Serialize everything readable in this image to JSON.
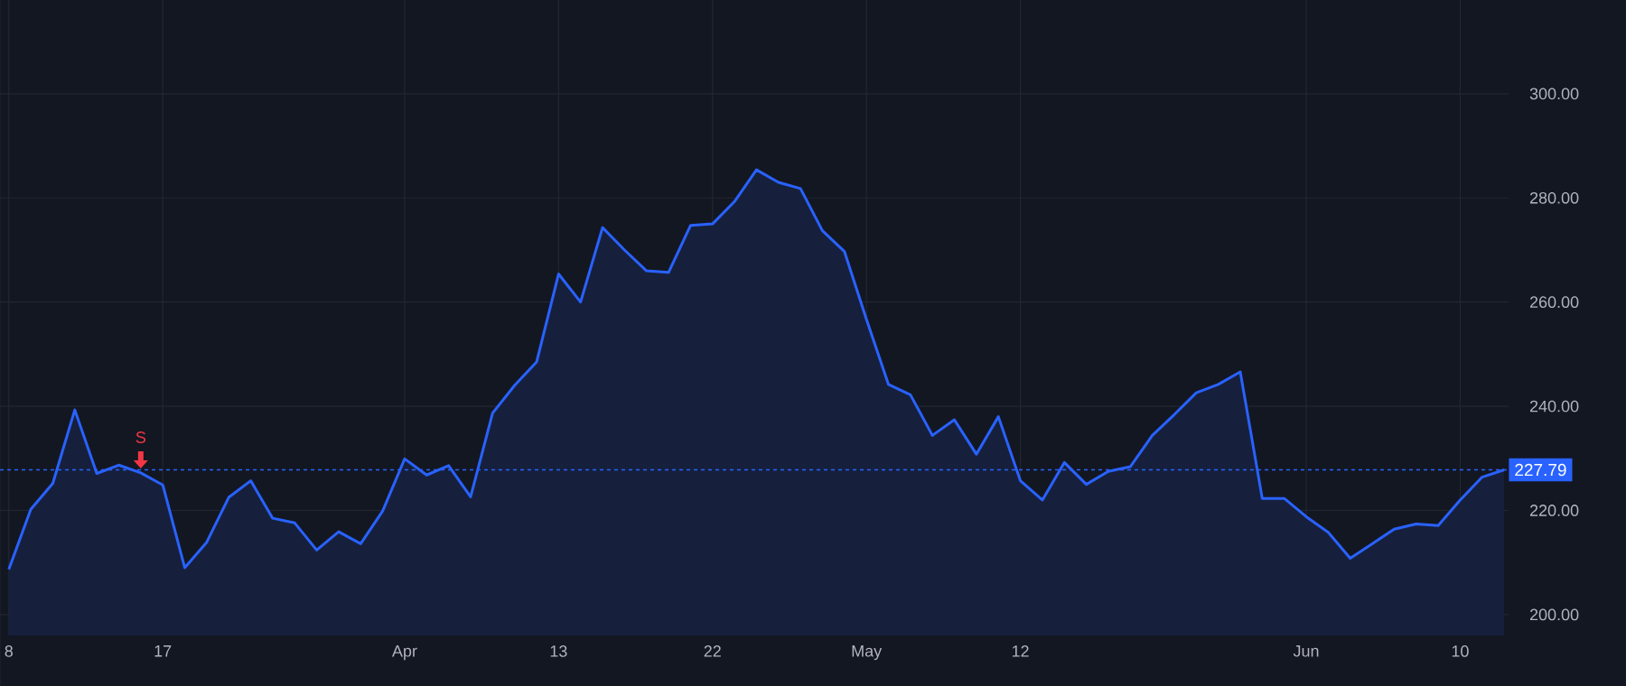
{
  "chart_data": {
    "type": "area",
    "categories": [
      "8",
      null,
      null,
      null,
      null,
      null,
      null,
      "17",
      null,
      null,
      null,
      null,
      null,
      null,
      null,
      null,
      null,
      null,
      "Apr",
      null,
      null,
      null,
      null,
      null,
      null,
      "13",
      null,
      null,
      null,
      null,
      null,
      null,
      "22",
      null,
      null,
      null,
      null,
      null,
      null,
      "May",
      null,
      null,
      null,
      null,
      null,
      null,
      "12",
      null,
      null,
      null,
      null,
      null,
      null,
      null,
      null,
      null,
      null,
      null,
      null,
      "Jun",
      null,
      null,
      null,
      null,
      null,
      null,
      "10",
      null,
      null
    ],
    "series": [
      {
        "color": "#2962ff",
        "values": [
          208.7,
          220.2,
          225.2,
          239.3,
          227.1,
          228.7,
          227.2,
          224.9,
          209.0,
          213.9,
          222.5,
          225.7,
          218.5,
          217.6,
          212.4,
          215.9,
          213.6,
          219.9,
          229.9,
          226.8,
          228.6,
          222.6,
          238.7,
          244.0,
          248.5,
          265.4,
          260.0,
          274.3,
          270.0,
          266.0,
          265.7,
          274.7,
          275.0,
          279.3,
          285.4,
          283.0,
          281.8,
          273.7,
          269.7,
          256.7,
          244.2,
          242.2,
          234.4,
          237.4,
          230.8,
          238.0,
          225.7,
          222.0,
          229.2,
          225.0,
          227.5,
          228.4,
          234.4,
          238.4,
          242.6,
          244.2,
          246.6,
          222.3,
          222.3,
          218.8,
          215.8,
          210.8,
          213.6,
          216.4,
          217.4,
          217.1,
          222.0,
          226.4,
          227.8
        ]
      }
    ],
    "ylim": [
      196,
      318
    ],
    "yticks": [
      {
        "value": 200,
        "label": "200.00"
      },
      {
        "value": 220,
        "label": "220.00"
      },
      {
        "value": 240,
        "label": "240.00"
      },
      {
        "value": 260,
        "label": "260.00"
      },
      {
        "value": 280,
        "label": "280.00"
      },
      {
        "value": 300,
        "label": "300.00"
      }
    ],
    "grid": true,
    "ref_lines": [
      {
        "axis": "y",
        "value": 227.79,
        "label": "227.79",
        "color": "#2962ff",
        "line_style": "dotted"
      }
    ],
    "annotations": [
      {
        "text": "S",
        "y": 227.2
      }
    ]
  }
}
